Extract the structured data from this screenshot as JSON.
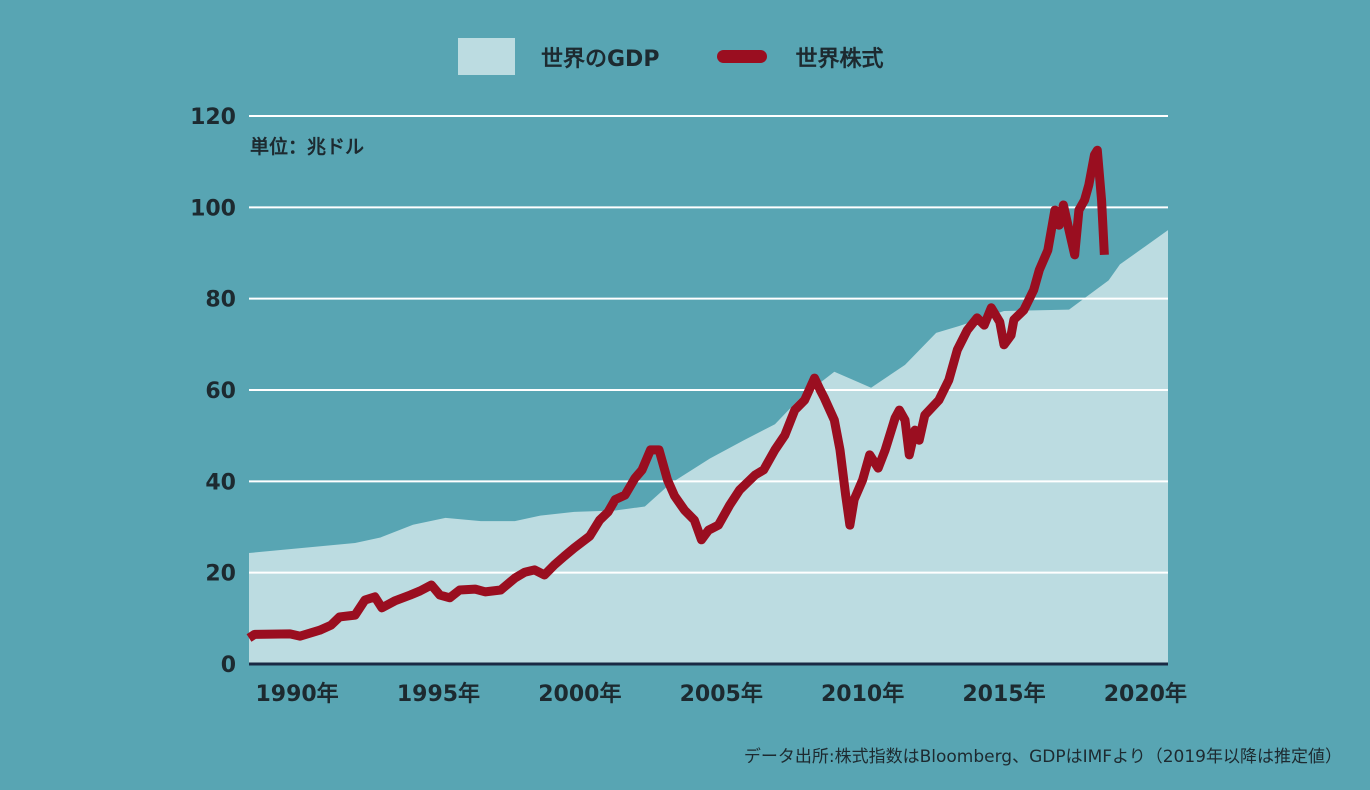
{
  "chart_data": {
    "type": "area+line",
    "legend": {
      "placement": "top",
      "entries": [
        "世界のGDP",
        "世界株式"
      ]
    },
    "unit_label": "単位：兆ドル",
    "source": "データ出所:株式指数はBloomberg、GDPはIMFより（2019年以降は推定値）",
    "xlim": [
      1988.3,
      2020.8
    ],
    "ylim": [
      0,
      120
    ],
    "yticks": [
      0,
      20,
      40,
      60,
      80,
      100,
      120
    ],
    "xticks": [
      {
        "value": 1990,
        "label": "1990年"
      },
      {
        "value": 1995,
        "label": "1995年"
      },
      {
        "value": 2000,
        "label": "2000年"
      },
      {
        "value": 2005,
        "label": "2005年"
      },
      {
        "value": 2010,
        "label": "2010年"
      },
      {
        "value": 2015,
        "label": "2015年"
      },
      {
        "value": 2020,
        "label": "2020年"
      }
    ],
    "grid": "horizontal",
    "colors": {
      "background": "#58a5b3",
      "gdp": "#bcdce1",
      "stocks": "#9a0e20",
      "grid": "#ffffff",
      "axis": "#1a2a44"
    },
    "series": [
      {
        "name": "世界のGDP",
        "kind": "area",
        "points": [
          [
            1988.3,
            24.3
          ],
          [
            1992.05,
            26.5
          ],
          [
            1992.95,
            27.7
          ],
          [
            1994.1,
            30.5
          ],
          [
            1995.25,
            32
          ],
          [
            1996.5,
            31.3
          ],
          [
            1997.7,
            31.3
          ],
          [
            1998.6,
            32.5
          ],
          [
            1999.8,
            33.3
          ],
          [
            2001.25,
            33.6
          ],
          [
            2002.3,
            34.5
          ],
          [
            2003.2,
            39.5
          ],
          [
            2004.6,
            45
          ],
          [
            2005.8,
            49
          ],
          [
            2006.9,
            52.5
          ],
          [
            2007.75,
            58
          ],
          [
            2009.0,
            64
          ],
          [
            2010.3,
            60.5
          ],
          [
            2011.5,
            65.5
          ],
          [
            2012.6,
            72.5
          ],
          [
            2013.4,
            74
          ],
          [
            2015.0,
            77.3
          ],
          [
            2017.3,
            77.6
          ],
          [
            2018.7,
            84
          ],
          [
            2019.1,
            87.5
          ],
          [
            2020.8,
            95
          ]
        ]
      },
      {
        "name": "世界株式",
        "kind": "line",
        "points": [
          [
            1988.3,
            5.7
          ],
          [
            1988.5,
            6.5
          ],
          [
            1989.75,
            6.6
          ],
          [
            1990.1,
            6.1
          ],
          [
            1990.8,
            7.4
          ],
          [
            1991.2,
            8.5
          ],
          [
            1991.5,
            10.3
          ],
          [
            1992.05,
            10.7
          ],
          [
            1992.4,
            14
          ],
          [
            1992.75,
            14.7
          ],
          [
            1993.0,
            12.3
          ],
          [
            1993.45,
            13.8
          ],
          [
            1994.0,
            15.1
          ],
          [
            1994.35,
            16
          ],
          [
            1994.75,
            17.3
          ],
          [
            1995.05,
            15.1
          ],
          [
            1995.4,
            14.5
          ],
          [
            1995.75,
            16.2
          ],
          [
            1996.3,
            16.4
          ],
          [
            1996.65,
            15.8
          ],
          [
            1997.2,
            16.2
          ],
          [
            1997.7,
            18.8
          ],
          [
            1998.05,
            20.1
          ],
          [
            1998.4,
            20.6
          ],
          [
            1998.75,
            19.5
          ],
          [
            1999.1,
            21.7
          ],
          [
            1999.45,
            23.6
          ],
          [
            1999.8,
            25.4
          ],
          [
            2000.35,
            28
          ],
          [
            2000.7,
            31.5
          ],
          [
            2001.0,
            33.3
          ],
          [
            2001.25,
            36
          ],
          [
            2001.6,
            37
          ],
          [
            2001.95,
            40.7
          ],
          [
            2002.2,
            42.5
          ],
          [
            2002.5,
            46.9
          ],
          [
            2002.8,
            46.9
          ],
          [
            2003.1,
            40.3
          ],
          [
            2003.35,
            36.8
          ],
          [
            2003.7,
            33.7
          ],
          [
            2004.05,
            31.5
          ],
          [
            2004.3,
            27.2
          ],
          [
            2004.55,
            29.3
          ],
          [
            2004.9,
            30.4
          ],
          [
            2005.3,
            34.8
          ],
          [
            2005.65,
            38.1
          ],
          [
            2006.2,
            41.4
          ],
          [
            2006.5,
            42.5
          ],
          [
            2006.9,
            46.9
          ],
          [
            2007.25,
            50.1
          ],
          [
            2007.6,
            55.6
          ],
          [
            2007.95,
            57.8
          ],
          [
            2008.3,
            62.6
          ],
          [
            2008.5,
            60
          ],
          [
            2008.65,
            58.2
          ],
          [
            2009.0,
            53.4
          ],
          [
            2009.2,
            46.9
          ],
          [
            2009.4,
            37
          ],
          [
            2009.55,
            30.4
          ],
          [
            2009.7,
            36
          ],
          [
            2010.0,
            40.3
          ],
          [
            2010.25,
            45.8
          ],
          [
            2010.55,
            42.9
          ],
          [
            2010.8,
            46.9
          ],
          [
            2011.15,
            53.9
          ],
          [
            2011.3,
            55.6
          ],
          [
            2011.5,
            53.4
          ],
          [
            2011.65,
            45.8
          ],
          [
            2011.85,
            51.2
          ],
          [
            2012.0,
            49
          ],
          [
            2012.2,
            54.5
          ],
          [
            2012.7,
            57.8
          ],
          [
            2013.05,
            62.2
          ],
          [
            2013.35,
            68.8
          ],
          [
            2013.7,
            73.1
          ],
          [
            2014.05,
            75.8
          ],
          [
            2014.3,
            74.2
          ],
          [
            2014.55,
            78
          ],
          [
            2014.85,
            74.9
          ],
          [
            2015.0,
            69.9
          ],
          [
            2015.25,
            72
          ],
          [
            2015.35,
            75.4
          ],
          [
            2015.7,
            77.5
          ],
          [
            2016.05,
            81.9
          ],
          [
            2016.25,
            86.3
          ],
          [
            2016.55,
            90.6
          ],
          [
            2016.8,
            99.4
          ],
          [
            2016.95,
            96.1
          ],
          [
            2017.1,
            100.5
          ],
          [
            2017.3,
            95
          ],
          [
            2017.5,
            89.6
          ],
          [
            2017.65,
            99.4
          ],
          [
            2017.85,
            101.6
          ],
          [
            2018.0,
            104.9
          ],
          [
            2018.2,
            111.5
          ],
          [
            2018.3,
            112.5
          ],
          [
            2018.45,
            101.6
          ],
          [
            2018.55,
            89.6
          ]
        ]
      }
    ]
  }
}
